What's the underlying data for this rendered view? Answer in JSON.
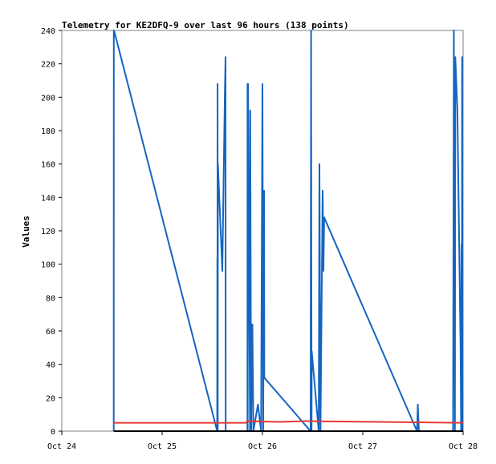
{
  "chart_data": {
    "type": "line",
    "title": "Telemetry for KE2DFQ-9 over last 96 hours (138 points)",
    "ylabel": "Values",
    "xlabel": "",
    "x_ticks": [
      "Oct 24",
      "Oct 25",
      "Oct 26",
      "Oct 27",
      "Oct 28"
    ],
    "y_ticks": [
      "0",
      "20",
      "40",
      "60",
      "80",
      "100",
      "120",
      "140",
      "160",
      "180",
      "200",
      "220",
      "240"
    ],
    "xlim": [
      "2024-10-24T00:00",
      "2024-10-28T00:00"
    ],
    "ylim": [
      0,
      240
    ],
    "grid": false,
    "series": [
      {
        "color": "#1565c0",
        "points": [
          [
            "2024-10-24T12:25",
            0
          ],
          [
            "2024-10-24T12:26",
            240
          ],
          [
            "2024-10-24T12:30",
            240
          ],
          [
            "2024-10-25T13:10",
            0
          ],
          [
            "2024-10-25T13:12",
            104
          ],
          [
            "2024-10-25T13:14",
            0
          ],
          [
            "2024-10-25T13:16",
            208
          ],
          [
            "2024-10-25T13:18",
            0
          ],
          [
            "2024-10-25T13:21",
            160
          ],
          [
            "2024-10-25T14:24",
            96
          ],
          [
            "2024-10-25T15:00",
            200
          ],
          [
            "2024-10-25T15:10",
            224
          ],
          [
            "2024-10-25T15:12",
            0
          ],
          [
            "2024-10-25T20:24",
            0
          ],
          [
            "2024-10-25T20:26",
            208
          ],
          [
            "2024-10-25T20:28",
            0
          ],
          [
            "2024-10-25T20:34",
            208
          ],
          [
            "2024-10-25T21:02",
            0
          ],
          [
            "2024-10-25T21:05",
            192
          ],
          [
            "2024-10-25T21:17",
            0
          ],
          [
            "2024-10-25T21:36",
            64
          ],
          [
            "2024-10-25T21:50",
            0
          ],
          [
            "2024-10-25T22:55",
            16
          ],
          [
            "2024-10-25T23:40",
            0
          ],
          [
            "2024-10-26T00:00",
            208
          ],
          [
            "2024-10-26T00:10",
            0
          ],
          [
            "2024-10-26T00:24",
            144
          ],
          [
            "2024-10-26T00:27",
            32
          ],
          [
            "2024-10-26T11:31",
            0
          ],
          [
            "2024-10-26T11:38",
            240
          ],
          [
            "2024-10-26T11:45",
            0
          ],
          [
            "2024-10-26T11:47",
            48
          ],
          [
            "2024-10-26T13:27",
            0
          ],
          [
            "2024-10-26T13:38",
            160
          ],
          [
            "2024-10-26T13:53",
            0
          ],
          [
            "2024-10-26T14:24",
            144
          ],
          [
            "2024-10-26T14:35",
            96
          ],
          [
            "2024-10-26T14:46",
            128
          ],
          [
            "2024-10-27T12:59",
            0
          ],
          [
            "2024-10-27T13:10",
            16
          ],
          [
            "2024-10-27T13:25",
            0
          ],
          [
            "2024-10-27T21:36",
            0
          ],
          [
            "2024-10-27T21:47",
            240
          ],
          [
            "2024-10-27T22:03",
            0
          ],
          [
            "2024-10-27T22:08",
            224
          ],
          [
            "2024-10-27T22:38",
            192
          ],
          [
            "2024-10-27T23:24",
            48
          ],
          [
            "2024-10-27T23:31",
            0
          ],
          [
            "2024-10-27T23:38",
            112
          ],
          [
            "2024-10-27T23:42",
            0
          ],
          [
            "2024-10-27T23:46",
            224
          ],
          [
            "2024-10-27T23:52",
            0
          ]
        ]
      },
      {
        "color": "#e53935",
        "points": [
          [
            "2024-10-24T12:25",
            5
          ],
          [
            "2024-10-25T20:00",
            5
          ],
          [
            "2024-10-25T20:20",
            6
          ],
          [
            "2024-10-26T04:00",
            5.5
          ],
          [
            "2024-10-26T10:00",
            6
          ],
          [
            "2024-10-28T00:00",
            5
          ]
        ]
      },
      {
        "color": "#000000",
        "points": [
          [
            "2024-10-24T12:25",
            0
          ],
          [
            "2024-10-28T00:00",
            0
          ]
        ]
      }
    ]
  }
}
